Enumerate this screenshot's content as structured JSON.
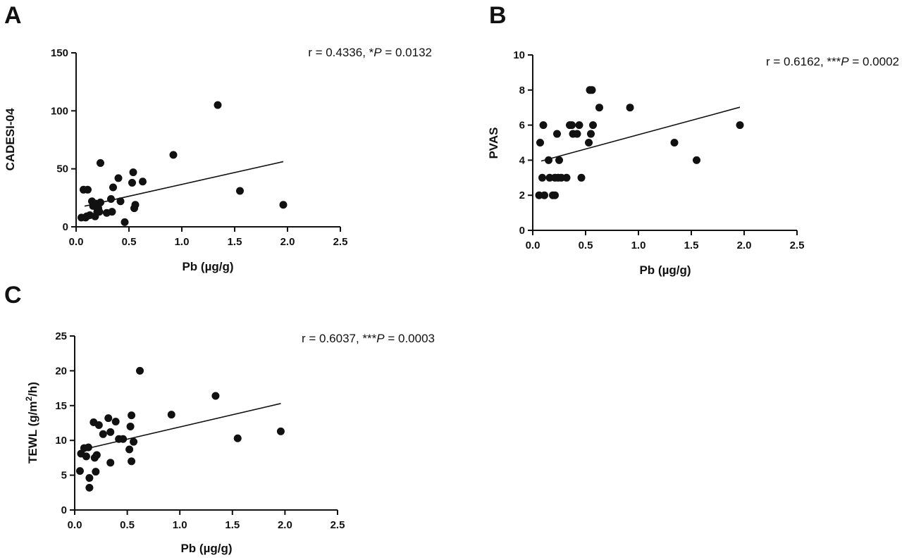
{
  "colors": {
    "ink": "#111111",
    "background": "#ffffff"
  },
  "chart_data": [
    {
      "panel": "A",
      "type": "scatter",
      "xlabel": "Pb (µg/g)",
      "ylabel": "CADESI-04",
      "xlim": [
        0,
        2.5
      ],
      "ylim": [
        0,
        150
      ],
      "xticks": [
        0.0,
        0.5,
        1.0,
        1.5,
        2.0,
        2.5
      ],
      "xtick_labels": [
        "0.0",
        "0.5",
        "1.0",
        "1.5",
        "2.0",
        "2.5"
      ],
      "yticks": [
        0,
        50,
        100,
        150
      ],
      "ytick_labels": [
        "0",
        "50",
        "100",
        "150"
      ],
      "stat": {
        "prefix": "r = 0.4336, *",
        "italic": "P",
        "suffix": " = 0.0132"
      },
      "fit": {
        "x": [
          0.08,
          1.96
        ],
        "y": [
          17.8,
          56.2
        ]
      },
      "points": [
        [
          0.05,
          8
        ],
        [
          0.07,
          32
        ],
        [
          0.09,
          8
        ],
        [
          0.1,
          9
        ],
        [
          0.11,
          32
        ],
        [
          0.13,
          10
        ],
        [
          0.15,
          22
        ],
        [
          0.16,
          18
        ],
        [
          0.18,
          9
        ],
        [
          0.19,
          20
        ],
        [
          0.2,
          13
        ],
        [
          0.21,
          16
        ],
        [
          0.23,
          55
        ],
        [
          0.23,
          21
        ],
        [
          0.22,
          13
        ],
        [
          0.29,
          12
        ],
        [
          0.33,
          24
        ],
        [
          0.34,
          13
        ],
        [
          0.35,
          34
        ],
        [
          0.4,
          42
        ],
        [
          0.42,
          22
        ],
        [
          0.46,
          4
        ],
        [
          0.53,
          38
        ],
        [
          0.54,
          47
        ],
        [
          0.55,
          16
        ],
        [
          0.56,
          19
        ],
        [
          0.63,
          39
        ],
        [
          0.92,
          62
        ],
        [
          1.34,
          105
        ],
        [
          1.55,
          31
        ],
        [
          1.96,
          19
        ]
      ]
    },
    {
      "panel": "B",
      "type": "scatter",
      "xlabel": "Pb (µg/g)",
      "ylabel": "PVAS",
      "xlim": [
        0,
        2.5
      ],
      "ylim": [
        0,
        10
      ],
      "xticks": [
        0.0,
        0.5,
        1.0,
        1.5,
        2.0,
        2.5
      ],
      "xtick_labels": [
        "0.0",
        "0.5",
        "1.0",
        "1.5",
        "2.0",
        "2.5"
      ],
      "yticks": [
        0,
        2,
        4,
        6,
        8,
        10
      ],
      "ytick_labels": [
        "0",
        "2",
        "4",
        "6",
        "8",
        "10"
      ],
      "stat": {
        "prefix": "r = 0.6162, ***",
        "italic": "P",
        "suffix": " = 0.0002"
      },
      "fit": {
        "x": [
          0.08,
          1.96
        ],
        "y": [
          3.95,
          7.02
        ]
      },
      "points": [
        [
          0.06,
          2
        ],
        [
          0.07,
          5
        ],
        [
          0.09,
          3
        ],
        [
          0.11,
          2
        ],
        [
          0.1,
          6
        ],
        [
          0.15,
          4
        ],
        [
          0.16,
          3
        ],
        [
          0.19,
          2
        ],
        [
          0.21,
          2
        ],
        [
          0.21,
          3
        ],
        [
          0.23,
          5.5
        ],
        [
          0.24,
          3
        ],
        [
          0.25,
          4
        ],
        [
          0.27,
          3
        ],
        [
          0.32,
          3
        ],
        [
          0.35,
          6
        ],
        [
          0.37,
          6
        ],
        [
          0.38,
          5.5
        ],
        [
          0.42,
          5.5
        ],
        [
          0.44,
          6
        ],
        [
          0.46,
          3
        ],
        [
          0.53,
          5
        ],
        [
          0.54,
          8
        ],
        [
          0.56,
          8
        ],
        [
          0.55,
          5.5
        ],
        [
          0.57,
          6
        ],
        [
          0.63,
          7
        ],
        [
          0.92,
          7
        ],
        [
          1.34,
          5
        ],
        [
          1.55,
          4
        ],
        [
          1.96,
          6
        ]
      ]
    },
    {
      "panel": "C",
      "type": "scatter",
      "xlabel": "Pb (µg/g)",
      "ylabel": "TEWL (g/m²/h)",
      "xlim": [
        0,
        2.5
      ],
      "ylim": [
        0,
        25
      ],
      "xticks": [
        0.0,
        0.5,
        1.0,
        1.5,
        2.0,
        2.5
      ],
      "xtick_labels": [
        "0.0",
        "0.5",
        "1.0",
        "1.5",
        "2.0",
        "2.5"
      ],
      "yticks": [
        0,
        5,
        10,
        15,
        20,
        25
      ],
      "ytick_labels": [
        "0",
        "5",
        "10",
        "15",
        "20",
        "25"
      ],
      "stat": {
        "prefix": "r = 0.6037, ***",
        "italic": "P",
        "suffix": " = 0.0003"
      },
      "fit": {
        "x": [
          0.08,
          1.96
        ],
        "y": [
          8.7,
          15.3
        ]
      },
      "points": [
        [
          0.05,
          5.6
        ],
        [
          0.06,
          8.1
        ],
        [
          0.09,
          8.9
        ],
        [
          0.11,
          7.7
        ],
        [
          0.13,
          9.0
        ],
        [
          0.14,
          4.6
        ],
        [
          0.14,
          3.2
        ],
        [
          0.18,
          12.6
        ],
        [
          0.19,
          7.5
        ],
        [
          0.2,
          5.5
        ],
        [
          0.21,
          7.9
        ],
        [
          0.23,
          12.2
        ],
        [
          0.27,
          10.9
        ],
        [
          0.32,
          13.2
        ],
        [
          0.34,
          6.8
        ],
        [
          0.34,
          11.2
        ],
        [
          0.39,
          12.7
        ],
        [
          0.42,
          10.2
        ],
        [
          0.46,
          10.2
        ],
        [
          0.52,
          8.7
        ],
        [
          0.53,
          12.0
        ],
        [
          0.54,
          13.6
        ],
        [
          0.54,
          7.0
        ],
        [
          0.56,
          9.8
        ],
        [
          0.62,
          20.0
        ],
        [
          0.92,
          13.7
        ],
        [
          1.34,
          16.4
        ],
        [
          1.55,
          10.3
        ],
        [
          1.96,
          11.3
        ]
      ]
    }
  ]
}
